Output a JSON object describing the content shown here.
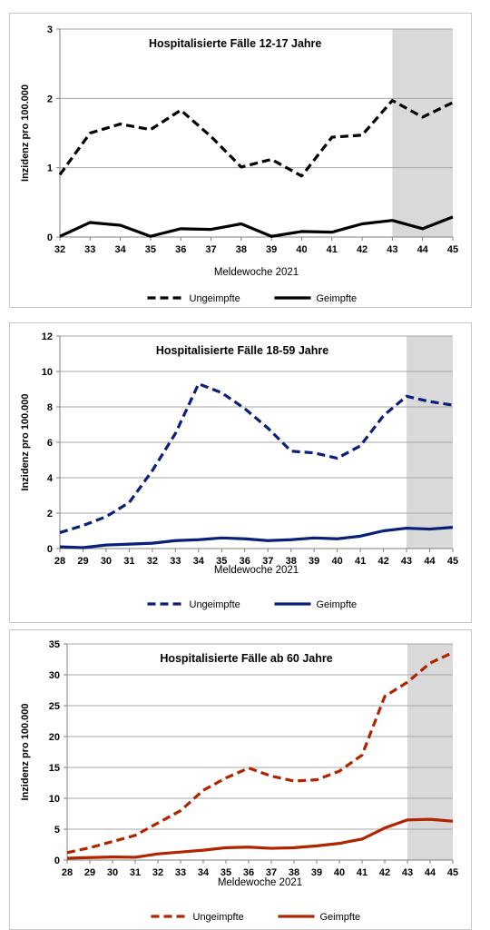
{
  "panels": [
    {
      "title": "Hospitalisierte Fälle 12-17 Jahre",
      "xlabel": "Meldewoche 2021",
      "ylabel": "Inzidenz pro 100.000",
      "legend": [
        "Ungeimpfte",
        "Geimpfte"
      ],
      "color": "#000000",
      "ylim": [
        0,
        3
      ],
      "yticks": [
        "0",
        "1",
        "2",
        "3"
      ],
      "ytick_values": [
        0,
        1,
        2,
        3
      ],
      "xticks": [
        "32",
        "33",
        "34",
        "35",
        "36",
        "37",
        "38",
        "39",
        "40",
        "41",
        "42",
        "43",
        "44",
        "45"
      ],
      "x": [
        32,
        33,
        34,
        35,
        36,
        37,
        38,
        39,
        40,
        41,
        42,
        43,
        44,
        45
      ],
      "shaded_from": 43,
      "series": [
        {
          "name": "Ungeimpfte",
          "dashed": true,
          "values": [
            0.9,
            1.5,
            1.63,
            1.55,
            1.83,
            1.45,
            1.01,
            1.12,
            0.88,
            1.44,
            1.47,
            1.97,
            1.73,
            1.94
          ]
        },
        {
          "name": "Geimpfte",
          "dashed": false,
          "values": [
            0.01,
            0.21,
            0.17,
            0.01,
            0.12,
            0.11,
            0.19,
            0.01,
            0.08,
            0.07,
            0.19,
            0.24,
            0.12,
            0.29
          ]
        }
      ]
    },
    {
      "title": "Hospitalisierte Fälle 18-59 Jahre",
      "xlabel": "Meldewoche 2021",
      "ylabel": "Inzidenz pro 100.000",
      "legend": [
        "Ungeimpfte",
        "Geimpfte"
      ],
      "color": "#0a1f7a",
      "ylim": [
        0,
        12
      ],
      "yticks": [
        "0",
        "2",
        "4",
        "6",
        "8",
        "10",
        "12"
      ],
      "ytick_values": [
        0,
        2,
        4,
        6,
        8,
        10,
        12
      ],
      "xticks": [
        "28",
        "29",
        "30",
        "31",
        "32",
        "33",
        "34",
        "35",
        "36",
        "37",
        "38",
        "39",
        "40",
        "41",
        "42",
        "43",
        "44",
        "45"
      ],
      "x": [
        28,
        29,
        30,
        31,
        32,
        33,
        34,
        35,
        36,
        37,
        38,
        39,
        40,
        41,
        42,
        43,
        44,
        45
      ],
      "shaded_from": 43,
      "series": [
        {
          "name": "Ungeimpfte",
          "dashed": true,
          "values": [
            0.9,
            1.3,
            1.8,
            2.6,
            4.4,
            6.5,
            9.3,
            8.8,
            7.9,
            6.8,
            5.5,
            5.4,
            5.1,
            5.8,
            7.5,
            8.6,
            8.3,
            8.1
          ]
        },
        {
          "name": "Geimpfte",
          "dashed": false,
          "values": [
            0.1,
            0.05,
            0.2,
            0.25,
            0.3,
            0.45,
            0.5,
            0.6,
            0.55,
            0.45,
            0.5,
            0.6,
            0.55,
            0.7,
            1.0,
            1.15,
            1.1,
            1.2
          ]
        }
      ]
    },
    {
      "title": "Hospitalisierte Fälle ab 60 Jahre",
      "xlabel": "Meldewoche 2021",
      "ylabel": "Inzidenz pro 100.000",
      "legend": [
        "Ungeimpfte",
        "Geimpfte"
      ],
      "color": "#b02400",
      "ylim": [
        0,
        35
      ],
      "yticks": [
        "0",
        "5",
        "10",
        "15",
        "20",
        "25",
        "30",
        "35"
      ],
      "ytick_values": [
        0,
        5,
        10,
        15,
        20,
        25,
        30,
        35
      ],
      "xticks": [
        "28",
        "29",
        "30",
        "31",
        "32",
        "33",
        "34",
        "35",
        "36",
        "37",
        "38",
        "39",
        "40",
        "41",
        "42",
        "43",
        "44",
        "45"
      ],
      "x": [
        28,
        29,
        30,
        31,
        32,
        33,
        34,
        35,
        36,
        37,
        38,
        39,
        40,
        41,
        42,
        43,
        44,
        45
      ],
      "shaded_from": 43,
      "series": [
        {
          "name": "Ungeimpfte",
          "dashed": true,
          "values": [
            1.2,
            2.0,
            3.0,
            4.0,
            6.0,
            8.0,
            11.3,
            13.3,
            14.9,
            13.6,
            12.8,
            13.0,
            14.4,
            17.0,
            26.5,
            28.8,
            31.9,
            33.6
          ]
        },
        {
          "name": "Geimpfte",
          "dashed": false,
          "values": [
            0.3,
            0.4,
            0.5,
            0.45,
            1.0,
            1.3,
            1.6,
            2.0,
            2.1,
            1.9,
            2.0,
            2.3,
            2.7,
            3.4,
            5.2,
            6.5,
            6.6,
            6.3
          ]
        }
      ]
    }
  ]
}
